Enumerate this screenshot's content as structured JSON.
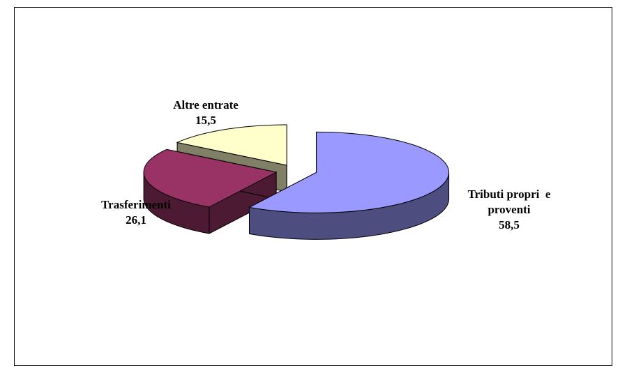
{
  "chart_data": {
    "type": "pie",
    "categories": [
      "Tributi propri  e proventi",
      "Trasferimenti",
      "Altre entrate"
    ],
    "values": [
      58.5,
      26.1,
      15.5
    ],
    "value_labels": [
      "58,5",
      "26,1",
      "15,5"
    ],
    "colors": [
      "#9999ff",
      "#993366",
      "#ffffcc"
    ]
  }
}
